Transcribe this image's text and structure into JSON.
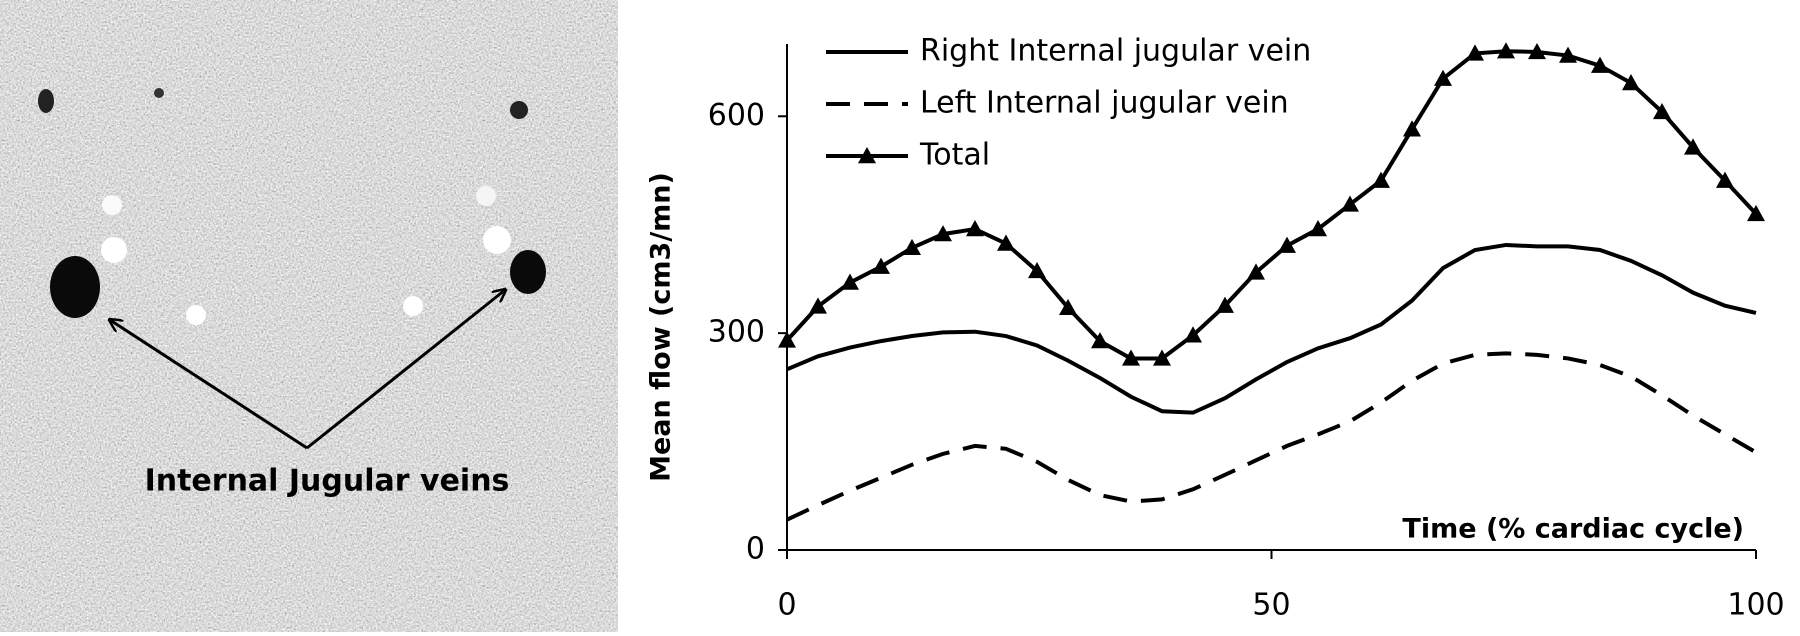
{
  "image": {
    "annotation": "Internal Jugular veins"
  },
  "chart_data": {
    "type": "line",
    "xlabel": "Time (% cardiac cycle)",
    "ylabel": "Mean flow (cm3/mn)",
    "x": [
      0,
      3.2,
      6.5,
      9.7,
      12.9,
      16.1,
      19.4,
      22.6,
      25.8,
      29,
      32.3,
      35.5,
      38.7,
      41.9,
      45.2,
      48.4,
      51.6,
      54.8,
      58.1,
      61.3,
      64.5,
      67.7,
      71,
      74.2,
      77.4,
      80.6,
      83.9,
      87.1,
      90.3,
      93.5,
      96.8,
      100
    ],
    "series": [
      {
        "name": "Right Internal jugular vein",
        "color": "#000000",
        "line_style": "solid",
        "values": [
          250,
          268,
          280,
          289,
          296,
          301,
          302,
          296,
          283,
          262,
          238,
          212,
          192,
          190,
          210,
          236,
          260,
          279,
          293,
          312,
          345,
          390,
          415,
          422,
          420,
          420,
          415,
          400,
          380,
          356,
          338,
          328
        ]
      },
      {
        "name": "Left Internal jugular vein",
        "color": "#000000",
        "line_style": "dashed",
        "values": [
          42,
          62,
          82,
          100,
          118,
          133,
          144,
          140,
          122,
          97,
          76,
          67,
          70,
          84,
          104,
          124,
          144,
          160,
          178,
          204,
          234,
          258,
          270,
          272,
          270,
          265,
          256,
          240,
          214,
          186,
          160,
          135
        ]
      },
      {
        "name": "Total",
        "color": "#000000",
        "line_style": "solid",
        "marker": "triangle",
        "values": [
          290,
          337,
          370,
          392,
          418,
          437,
          444,
          424,
          386,
          335,
          289,
          265,
          265,
          297,
          338,
          384,
          421,
          444,
          478,
          511,
          582,
          652,
          687,
          690,
          689,
          684,
          670,
          646,
          606,
          557,
          511,
          465
        ]
      }
    ],
    "xlim": [
      0,
      100
    ],
    "xticks": [
      0,
      50,
      100
    ],
    "ylim": [
      0,
      700
    ],
    "yticks": [
      0,
      300,
      600
    ],
    "grid": false,
    "legend": "top-left"
  }
}
